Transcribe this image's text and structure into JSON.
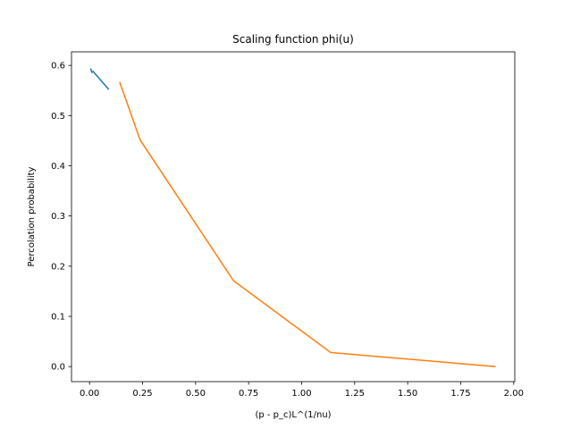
{
  "chart_data": {
    "type": "line",
    "title": "Scaling function phi(u)",
    "xlabel": "(p - p_c)L^(1/nu)",
    "ylabel": "Percolation probability",
    "xlim": [
      -0.085,
      2.005
    ],
    "ylim": [
      -0.03,
      0.627
    ],
    "xticks": [
      0.0,
      0.25,
      0.5,
      0.75,
      1.0,
      1.25,
      1.5,
      1.75,
      2.0
    ],
    "xtick_labels": [
      "0.00",
      "0.25",
      "0.50",
      "0.75",
      "1.00",
      "1.25",
      "1.50",
      "1.75",
      "2.00"
    ],
    "yticks": [
      0.0,
      0.1,
      0.2,
      0.3,
      0.4,
      0.5,
      0.6
    ],
    "ytick_labels": [
      "0.0",
      "0.1",
      "0.2",
      "0.3",
      "0.4",
      "0.5",
      "0.6"
    ],
    "grid": false,
    "series": [
      {
        "color": "#1f77b4",
        "x": [
          0.005,
          0.011,
          0.017,
          0.023,
          0.091
        ],
        "y": [
          0.594,
          0.586,
          0.588,
          0.585,
          0.552
        ]
      },
      {
        "color": "#ff7f0e",
        "x": [
          0.142,
          0.239,
          0.679,
          1.137,
          1.914
        ],
        "y": [
          0.567,
          0.451,
          0.171,
          0.028,
          0.0
        ]
      }
    ]
  }
}
